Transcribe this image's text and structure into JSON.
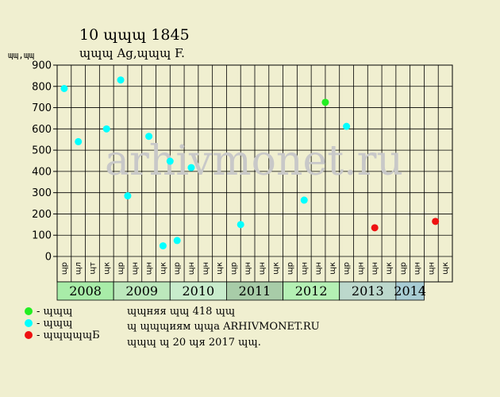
{
  "header": {
    "title": "10 ɰɰɰ 1845",
    "subtitle": "ɰɰɰ Ag,ɰɰɰ F.",
    "y_unit": "ɰɰ,ɰɰ"
  },
  "watermark": "arhivmonet.ru",
  "legend": [
    {
      "label": "- ɰɰɰ",
      "color": "#22ee22"
    },
    {
      "label": "- ɰɰɰ",
      "color": "#00ffff"
    },
    {
      "label": "- ɰɰɰɰɰБ",
      "color": "#ee1111"
    }
  ],
  "notes": [
    "ɰɰняя ɰɰ 418 ɰɰ",
    "ɰ ɰɰɰиям ɰɰа ARHIVMONET.RU",
    "ɰɰɰ ɰ 20 ɰя 2017 ɰɰ."
  ],
  "chart_data": {
    "type": "scatter",
    "ylim": [
      0,
      900
    ],
    "y_ticks": [
      0,
      100,
      200,
      300,
      400,
      500,
      600,
      700,
      800,
      900
    ],
    "grid": true,
    "columns": [
      "ɰр",
      "ɰл",
      "ɰт",
      "ɰк",
      "ɰр",
      "ɰн",
      "ɰн",
      "ɰк",
      "ɰр",
      "ɰн",
      "ɰн",
      "ɰк",
      "ɰр",
      "ɰн",
      "ɰн",
      "ɰк",
      "ɰр",
      "ɰн",
      "ɰн",
      "ɰк",
      "ɰр",
      "ɰн",
      "ɰн",
      "ɰк",
      "ɰр",
      "ɰн",
      "ɰн",
      "ɰк"
    ],
    "years": [
      {
        "label": "2008",
        "start": 0,
        "span": 4,
        "color": "#a8eca8"
      },
      {
        "label": "2009",
        "start": 4,
        "span": 4,
        "color": "#bce8bc"
      },
      {
        "label": "2010",
        "start": 8,
        "span": 4,
        "color": "#c8eccc"
      },
      {
        "label": "2011",
        "start": 12,
        "span": 4,
        "color": "#a8cca8"
      },
      {
        "label": "2012",
        "start": 16,
        "span": 4,
        "color": "#b4f0b4"
      },
      {
        "label": "2013",
        "start": 20,
        "span": 4,
        "color": "#bcd8cc"
      },
      {
        "label": "2014",
        "start": 24,
        "span": 2,
        "color": "#a8ccd4"
      }
    ],
    "points": [
      {
        "x": 0.5,
        "y": 790,
        "series": 1
      },
      {
        "x": 1.5,
        "y": 540,
        "series": 1
      },
      {
        "x": 3.5,
        "y": 600,
        "series": 1
      },
      {
        "x": 4.5,
        "y": 830,
        "series": 1
      },
      {
        "x": 5.0,
        "y": 285,
        "series": 1
      },
      {
        "x": 6.5,
        "y": 565,
        "series": 1
      },
      {
        "x": 7.5,
        "y": 50,
        "series": 1
      },
      {
        "x": 8.0,
        "y": 448,
        "series": 1
      },
      {
        "x": 8.5,
        "y": 75,
        "series": 1
      },
      {
        "x": 9.5,
        "y": 418,
        "series": 1
      },
      {
        "x": 13.0,
        "y": 150,
        "series": 1
      },
      {
        "x": 17.5,
        "y": 265,
        "series": 1
      },
      {
        "x": 19.0,
        "y": 725,
        "series": 0
      },
      {
        "x": 20.5,
        "y": 612,
        "series": 1
      },
      {
        "x": 22.5,
        "y": 135,
        "series": 2
      },
      {
        "x": 26.8,
        "y": 165,
        "series": 2
      }
    ]
  }
}
